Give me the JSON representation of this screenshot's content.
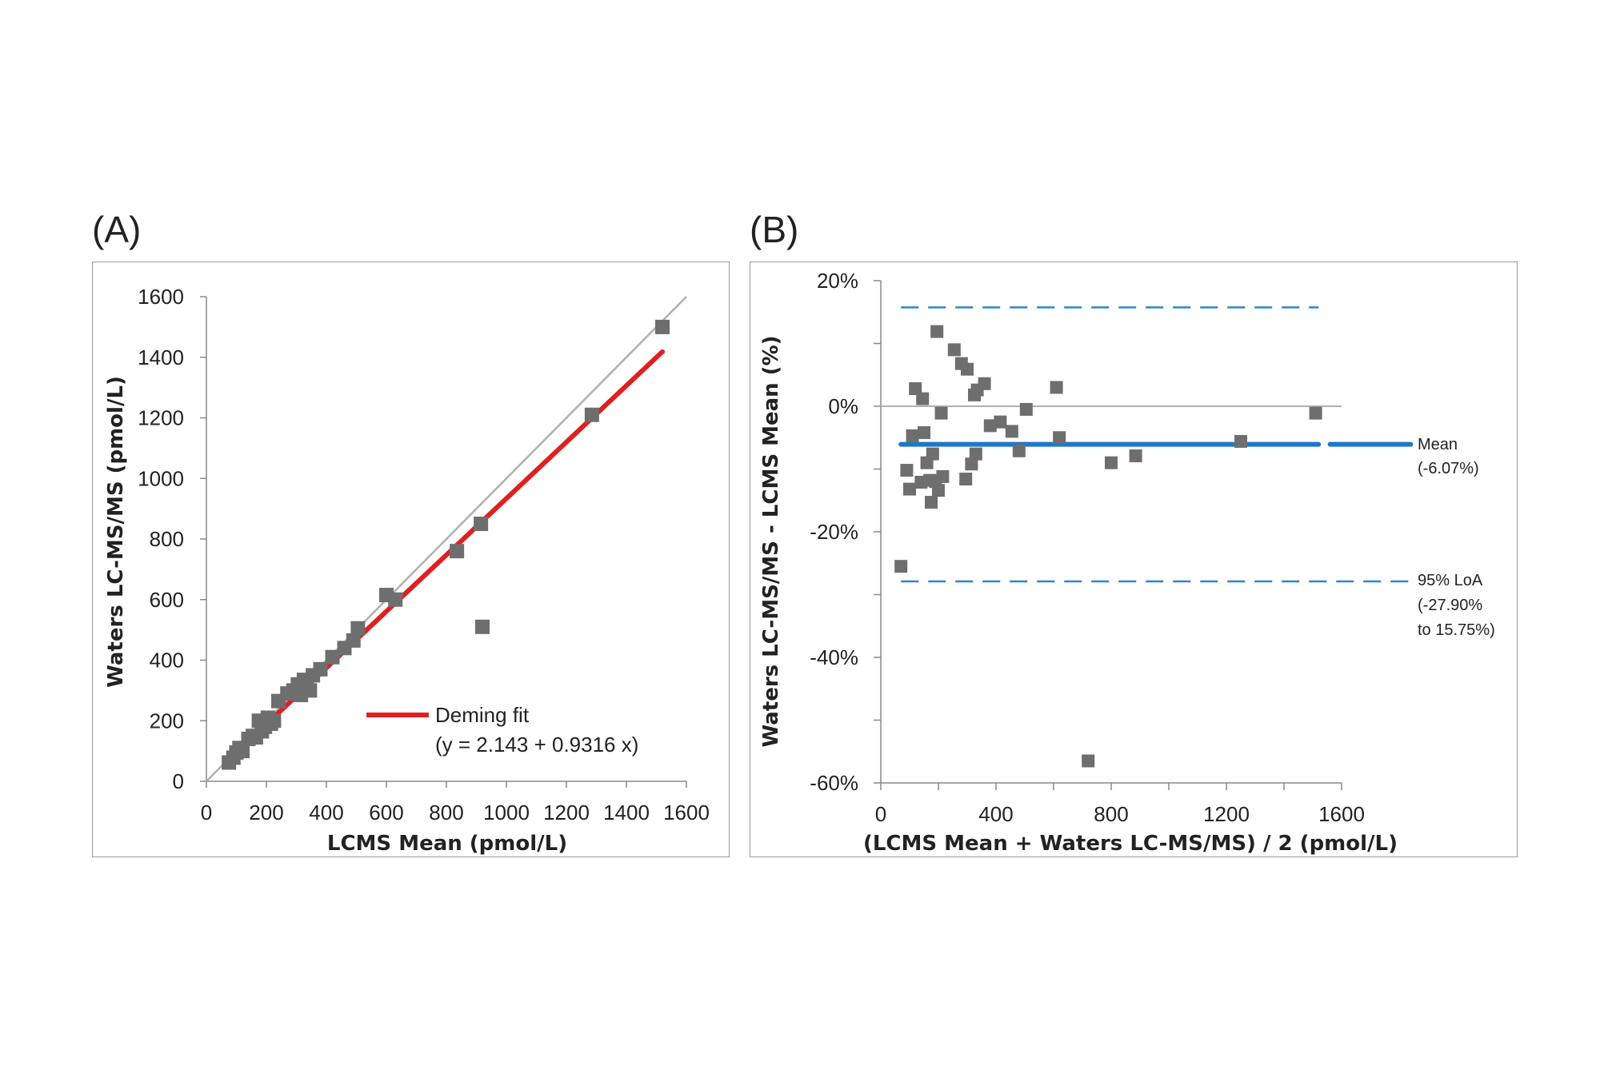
{
  "panels": {
    "a_label": "(A)",
    "b_label": "(B)"
  },
  "colors": {
    "points": "#6e6e6e",
    "deming": "#e02020",
    "identity": "#b0b0b0",
    "mean_line": "#1e78c8",
    "loa_line": "#2b86d0"
  },
  "chart_data": [
    {
      "type": "scatter",
      "panel": "A",
      "xlabel": "LCMS Mean (pmol/L)",
      "ylabel": "Waters LC-MS/MS (pmol/L)",
      "xlim": [
        0,
        1600
      ],
      "ylim": [
        0,
        1600
      ],
      "xticks": [
        "0",
        "200",
        "400",
        "600",
        "800",
        "1000",
        "1200",
        "1400",
        "1600"
      ],
      "yticks": [
        "0",
        "200",
        "400",
        "600",
        "800",
        "1000",
        "1200",
        "1400",
        "1600"
      ],
      "grid": false,
      "legend": {
        "label": "Deming fit",
        "equation": "(y = 2.143 + 0.9316 x)",
        "placement": "bottom-right"
      },
      "deming_fit": {
        "intercept": 2.143,
        "slope": 0.9316,
        "x_range": [
          70,
          1520
        ]
      },
      "identity_line": {
        "x_range": [
          0,
          1600
        ]
      },
      "points": [
        {
          "x": 75,
          "y": 62
        },
        {
          "x": 90,
          "y": 78
        },
        {
          "x": 100,
          "y": 95
        },
        {
          "x": 110,
          "y": 110
        },
        {
          "x": 120,
          "y": 100
        },
        {
          "x": 140,
          "y": 140
        },
        {
          "x": 155,
          "y": 150
        },
        {
          "x": 165,
          "y": 145
        },
        {
          "x": 175,
          "y": 200
        },
        {
          "x": 185,
          "y": 165
        },
        {
          "x": 195,
          "y": 180
        },
        {
          "x": 205,
          "y": 210
        },
        {
          "x": 215,
          "y": 190
        },
        {
          "x": 225,
          "y": 200
        },
        {
          "x": 240,
          "y": 265
        },
        {
          "x": 270,
          "y": 290
        },
        {
          "x": 290,
          "y": 300
        },
        {
          "x": 305,
          "y": 320
        },
        {
          "x": 315,
          "y": 285
        },
        {
          "x": 325,
          "y": 335
        },
        {
          "x": 335,
          "y": 315
        },
        {
          "x": 345,
          "y": 300
        },
        {
          "x": 355,
          "y": 350
        },
        {
          "x": 380,
          "y": 370
        },
        {
          "x": 420,
          "y": 410
        },
        {
          "x": 460,
          "y": 440
        },
        {
          "x": 490,
          "y": 465
        },
        {
          "x": 505,
          "y": 505
        },
        {
          "x": 600,
          "y": 615
        },
        {
          "x": 630,
          "y": 600
        },
        {
          "x": 835,
          "y": 760
        },
        {
          "x": 915,
          "y": 850
        },
        {
          "x": 920,
          "y": 510
        },
        {
          "x": 1285,
          "y": 1210
        },
        {
          "x": 1520,
          "y": 1500
        }
      ]
    },
    {
      "type": "scatter",
      "panel": "B",
      "xlabel": "(LCMS Mean + Waters LC-MS/MS) / 2 (pmol/L)",
      "ylabel": "Waters LC-MS/MS - LCMS Mean (%)",
      "xlim": [
        0,
        1600
      ],
      "ylim": [
        -60,
        20
      ],
      "xticks": [
        "0",
        "400",
        "800",
        "1200",
        "1600"
      ],
      "yticks": [
        "20%",
        "0%",
        "-20%",
        "-40%",
        "-60%"
      ],
      "grid": false,
      "mean": {
        "value": -6.07,
        "label": "Mean",
        "value_label": "(-6.07%)",
        "x_range": [
          70,
          1840
        ]
      },
      "loa": {
        "upper": 15.75,
        "lower": -27.9,
        "label": "95% LoA",
        "value_label_1": "(-27.90%",
        "value_label_2": "to 15.75%)"
      },
      "zero_line": {
        "value": 0,
        "x_range": [
          0,
          1600
        ]
      },
      "points": [
        {
          "x": 70,
          "y": -25.5
        },
        {
          "x": 90,
          "y": -10.2
        },
        {
          "x": 100,
          "y": -13.2
        },
        {
          "x": 110,
          "y": -4.7
        },
        {
          "x": 120,
          "y": 2.8
        },
        {
          "x": 140,
          "y": -12.1
        },
        {
          "x": 145,
          "y": 1.2
        },
        {
          "x": 150,
          "y": -4.2
        },
        {
          "x": 160,
          "y": -9.0
        },
        {
          "x": 170,
          "y": -11.8
        },
        {
          "x": 175,
          "y": -15.3
        },
        {
          "x": 180,
          "y": -7.6
        },
        {
          "x": 190,
          "y": -12.0
        },
        {
          "x": 195,
          "y": 11.9
        },
        {
          "x": 200,
          "y": -13.4
        },
        {
          "x": 210,
          "y": -1.1
        },
        {
          "x": 215,
          "y": -11.2
        },
        {
          "x": 255,
          "y": 9.0
        },
        {
          "x": 280,
          "y": 6.8
        },
        {
          "x": 295,
          "y": -11.6
        },
        {
          "x": 300,
          "y": 5.9
        },
        {
          "x": 315,
          "y": -9.2
        },
        {
          "x": 325,
          "y": 1.8
        },
        {
          "x": 330,
          "y": -7.6
        },
        {
          "x": 335,
          "y": 2.6
        },
        {
          "x": 360,
          "y": 3.6
        },
        {
          "x": 380,
          "y": -3.1
        },
        {
          "x": 415,
          "y": -2.5
        },
        {
          "x": 455,
          "y": -4.0
        },
        {
          "x": 480,
          "y": -7.1
        },
        {
          "x": 505,
          "y": -0.5
        },
        {
          "x": 610,
          "y": 3.0
        },
        {
          "x": 620,
          "y": -5.0
        },
        {
          "x": 800,
          "y": -9.0
        },
        {
          "x": 885,
          "y": -7.9
        },
        {
          "x": 1250,
          "y": -5.6
        },
        {
          "x": 1510,
          "y": -1.1
        },
        {
          "x": 720,
          "y": -56.5
        }
      ]
    }
  ]
}
